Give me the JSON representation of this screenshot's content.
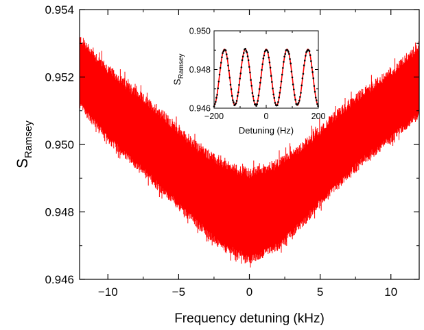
{
  "chart_data": [
    {
      "type": "area",
      "title": "",
      "xlabel": "Frequency detuning (kHz)",
      "ylabel": "S",
      "ylabel_subscript": "Ramsey",
      "xlim": [
        -12,
        12
      ],
      "ylim": [
        0.946,
        0.954
      ],
      "x_ticks": [
        -10,
        -5,
        0,
        5,
        10
      ],
      "x_tick_labels": [
        "−10",
        "−5",
        "0",
        "5",
        "10"
      ],
      "y_ticks": [
        0.946,
        0.948,
        0.95,
        0.952,
        0.954
      ],
      "y_tick_labels": [
        "0.946",
        "0.948",
        "0.950",
        "0.952",
        "0.954"
      ],
      "grid": false,
      "series": [
        {
          "color": "#ff0000",
          "x": [
            -12,
            -10,
            -8,
            -6,
            -4,
            -2,
            0,
            2,
            4,
            6,
            8,
            10,
            12
          ],
          "upper": [
            0.9531,
            0.9522,
            0.9515,
            0.9508,
            0.95,
            0.9494,
            0.9491,
            0.9494,
            0.95,
            0.9508,
            0.9515,
            0.9521,
            0.9529
          ],
          "lower": [
            0.9512,
            0.9502,
            0.9494,
            0.9486,
            0.9478,
            0.947,
            0.9466,
            0.947,
            0.9478,
            0.9487,
            0.9495,
            0.9502,
            0.9509
          ]
        }
      ]
    },
    {
      "type": "scatter",
      "title": "",
      "xlabel": "Detuning (Hz)",
      "ylabel": "S",
      "ylabel_subscript": "Ramsey",
      "xlim": [
        -200,
        200
      ],
      "ylim": [
        0.946,
        0.95
      ],
      "x_ticks": [
        -200,
        0,
        200
      ],
      "x_tick_labels": [
        "−200",
        "0",
        "200"
      ],
      "y_ticks": [
        0.946,
        0.948,
        0.95
      ],
      "y_tick_labels": [
        "0.946",
        "0.948",
        "0.950"
      ],
      "grid": false,
      "series": [
        {
          "kind": "points",
          "color": "#000000",
          "center": 0.9476,
          "amplitude": 0.00145,
          "period": 80
        },
        {
          "kind": "fit",
          "color": "#ff0000",
          "center": 0.9476,
          "amplitude": 0.00145,
          "period": 80
        }
      ]
    }
  ]
}
